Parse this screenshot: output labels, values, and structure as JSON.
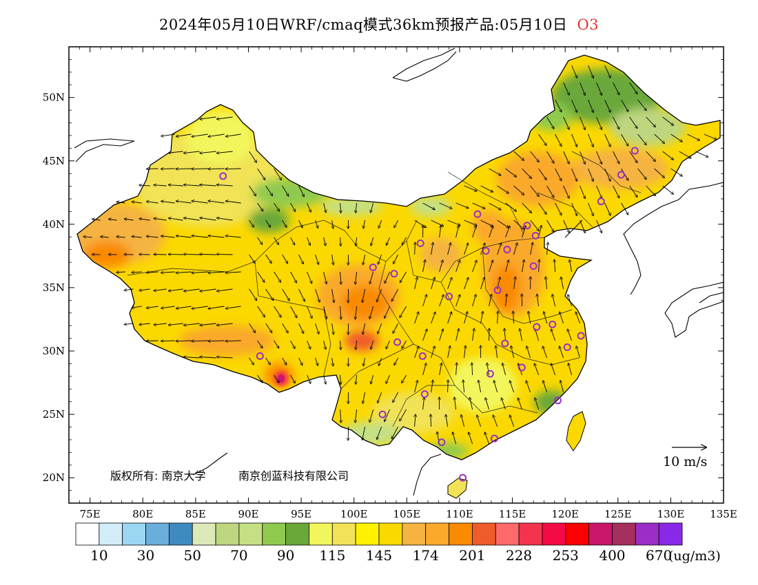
{
  "title": {
    "main": "2024年05月10日WRF/cmaq模式36km预报产品:05月10日",
    "pollutant": "O3"
  },
  "map": {
    "lon_ticks": [
      "75E",
      "80E",
      "85E",
      "90E",
      "95E",
      "100E",
      "105E",
      "110E",
      "115E",
      "120E",
      "125E",
      "130E",
      "135E"
    ],
    "lat_ticks": [
      "20N",
      "25N",
      "30N",
      "35N",
      "40N",
      "45N",
      "50N"
    ],
    "copyright": "版权所有: 南京大学",
    "company": "南京创蓝科技有限公司",
    "wind_scale_label": "10  m/s",
    "stations": [
      [
        87.6,
        43.8
      ],
      [
        91.1,
        29.6
      ],
      [
        101.8,
        36.6
      ],
      [
        103.8,
        36.1
      ],
      [
        106.3,
        38.5
      ],
      [
        104.1,
        30.7
      ],
      [
        102.7,
        25.0
      ],
      [
        106.7,
        26.6
      ],
      [
        106.5,
        29.6
      ],
      [
        108.3,
        22.8
      ],
      [
        110.3,
        20.0
      ],
      [
        109.0,
        34.3
      ],
      [
        111.7,
        40.8
      ],
      [
        112.5,
        37.9
      ],
      [
        113.6,
        34.8
      ],
      [
        114.3,
        30.6
      ],
      [
        112.9,
        28.2
      ],
      [
        113.3,
        23.1
      ],
      [
        114.5,
        38.0
      ],
      [
        116.4,
        39.9
      ],
      [
        117.2,
        39.1
      ],
      [
        117.0,
        36.7
      ],
      [
        117.3,
        31.9
      ],
      [
        115.9,
        28.7
      ],
      [
        119.3,
        26.1
      ],
      [
        118.8,
        32.1
      ],
      [
        120.2,
        30.3
      ],
      [
        121.5,
        31.2
      ],
      [
        123.4,
        41.8
      ],
      [
        125.3,
        43.9
      ],
      [
        126.6,
        45.8
      ]
    ]
  },
  "colorbar": {
    "colors": [
      "#ffffff",
      "#d2ecfa",
      "#9bd7f3",
      "#6aaedc",
      "#3f8bc0",
      "#dde9b8",
      "#bdd67f",
      "#c5e084",
      "#8fca4f",
      "#6aa83a",
      "#f2f65c",
      "#f1e257",
      "#fff200",
      "#fbd800",
      "#f5b342",
      "#faa92b",
      "#fa8a00",
      "#f05b2a",
      "#fe6a6a",
      "#f4344d",
      "#f30a46",
      "#fa0000",
      "#c8176b",
      "#a5305d",
      "#9b2ec6",
      "#8928e6"
    ],
    "labels": [
      "10",
      "30",
      "50",
      "70",
      "90",
      "115",
      "145",
      "174",
      "201",
      "228",
      "253",
      "400",
      "670"
    ],
    "units": "(ug/m3)"
  }
}
